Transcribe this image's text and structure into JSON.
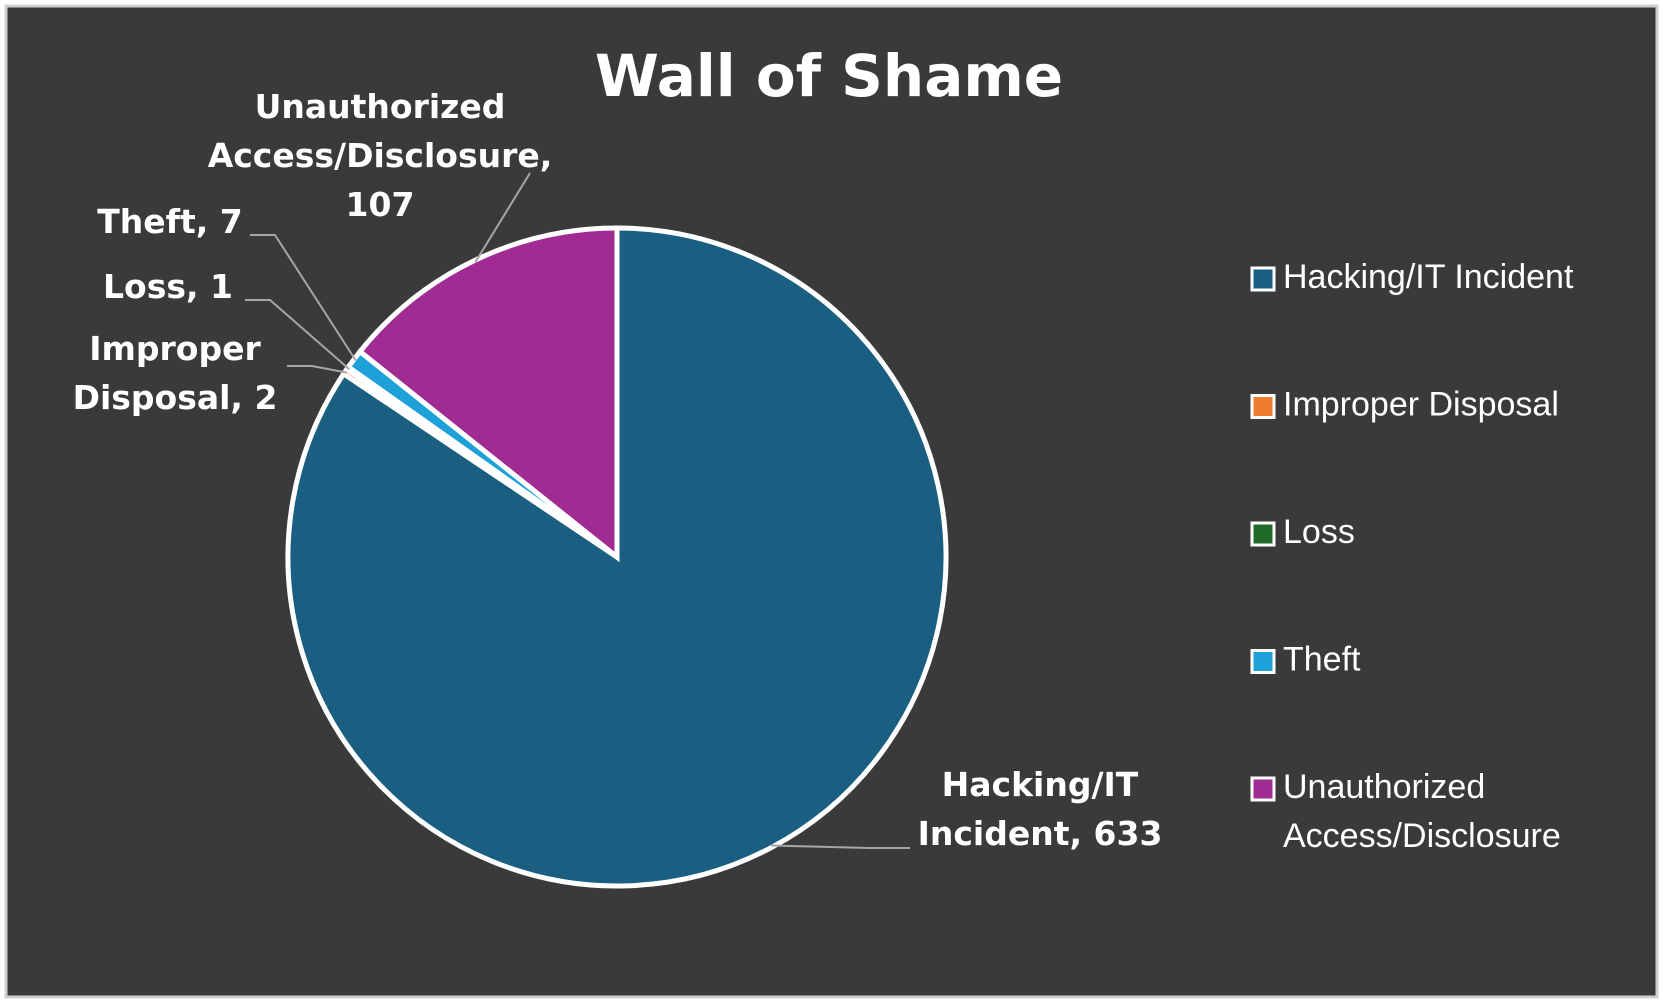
{
  "chart_data": {
    "type": "pie",
    "title": "Wall of Shame",
    "categories": [
      "Hacking/IT Incident",
      "Improper Disposal",
      "Loss",
      "Theft",
      "Unauthorized Access/Disclosure"
    ],
    "values": [
      633,
      2,
      1,
      7,
      107
    ],
    "value_labels": [
      "Hacking/IT Incident, 633",
      "Improper Disposal, 2",
      "Loss, 1",
      "Theft, 7",
      "Unauthorized Access/Disclosure, 107"
    ],
    "colors": [
      "#1a5f82",
      "#ed7d31",
      "#1e6b2a",
      "#1ea0d8",
      "#a02b93"
    ],
    "legend": "right"
  }
}
